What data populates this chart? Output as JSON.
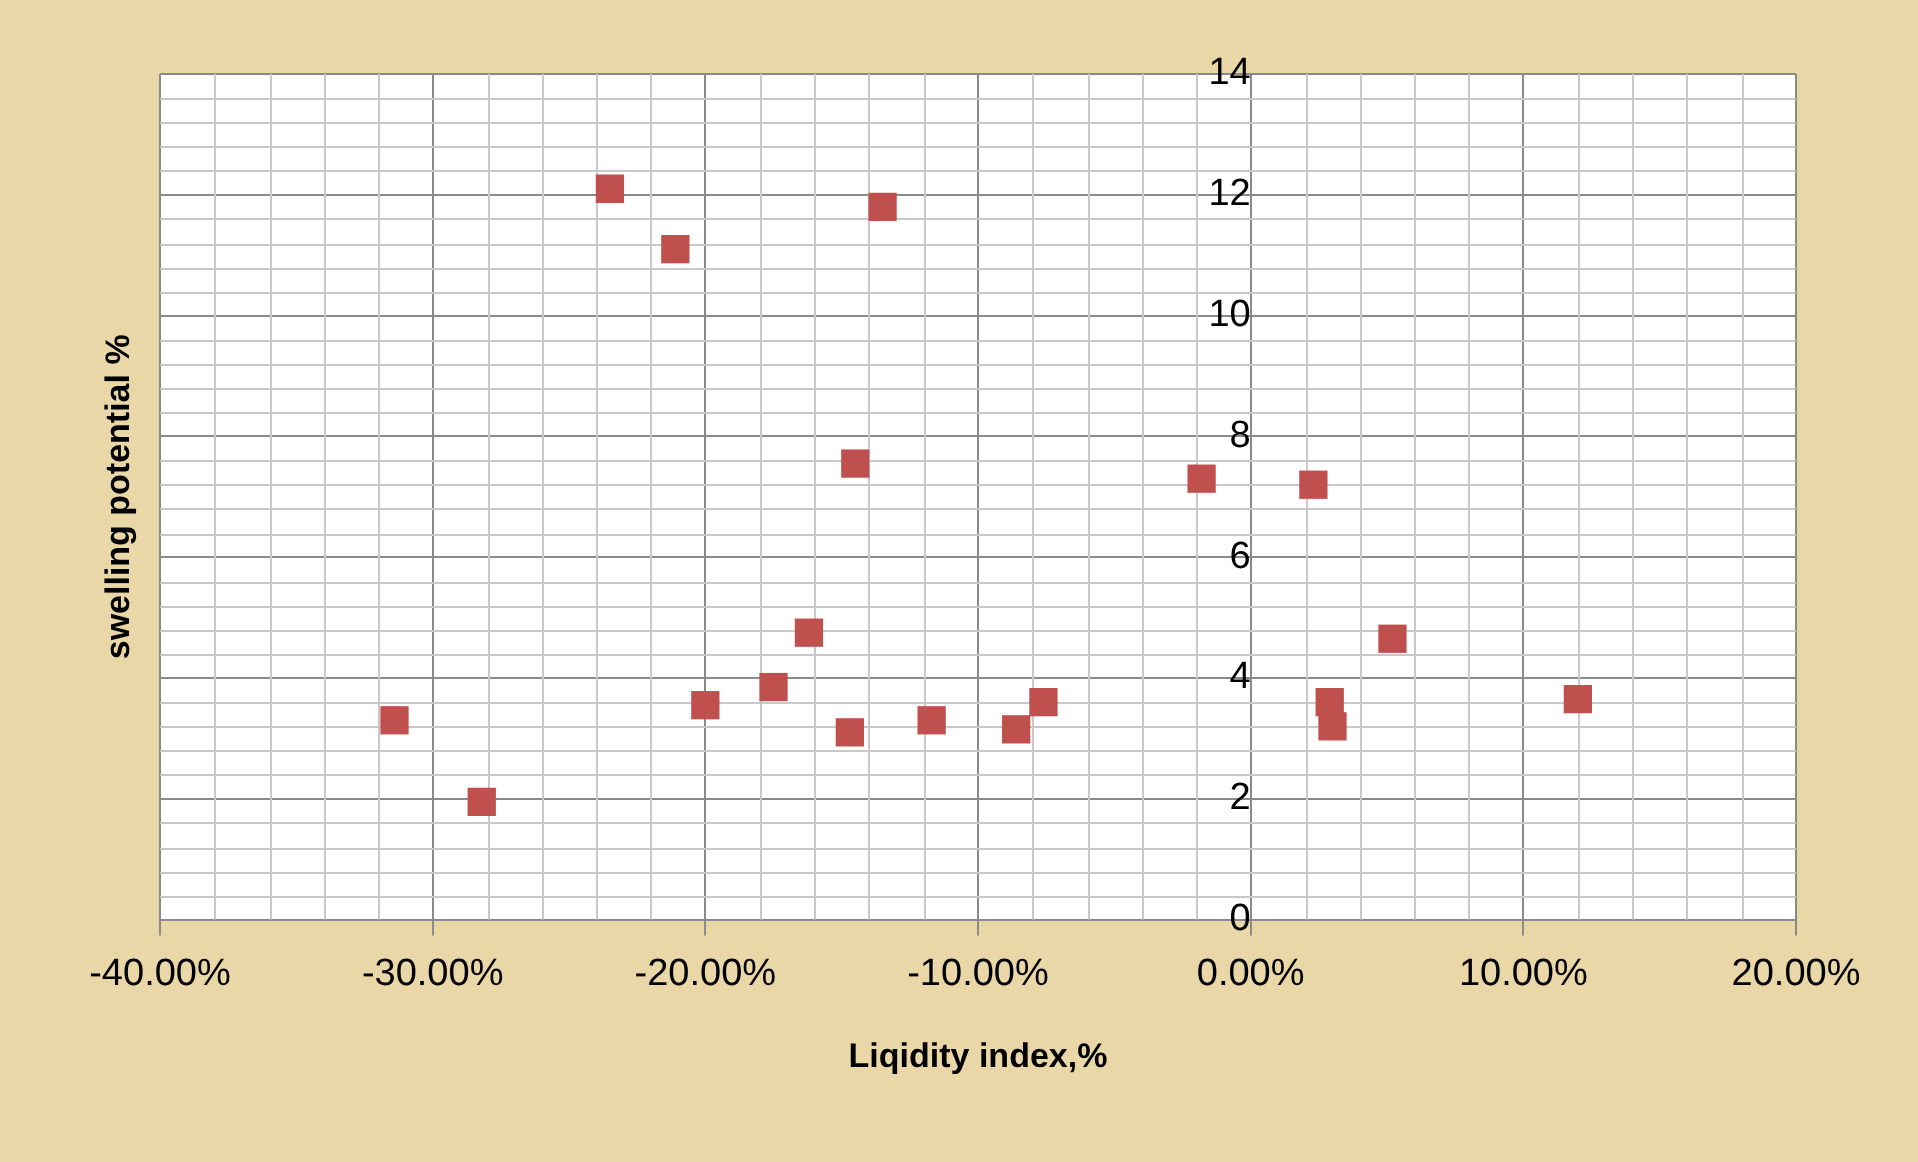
{
  "chart_data": {
    "type": "scatter",
    "xlabel": "Liqidity index,%",
    "ylabel": "swelling potential %",
    "x": [
      -31.4,
      -28.2,
      -23.5,
      -21.1,
      -20.0,
      -17.5,
      -16.2,
      -14.5,
      -14.7,
      -13.5,
      -11.7,
      -8.6,
      -7.6,
      -1.8,
      2.3,
      2.9,
      3.0,
      5.2,
      12.0
    ],
    "series": [
      {
        "color": "#c0504d",
        "values": [
          3.3,
          1.95,
          12.1,
          11.1,
          3.55,
          3.85,
          4.75,
          7.55,
          3.1,
          11.8,
          3.3,
          3.15,
          3.6,
          7.3,
          7.2,
          3.6,
          3.2,
          4.65,
          3.65
        ]
      }
    ],
    "xlim": [
      -40,
      20
    ],
    "xticks": [
      {
        "value": -40,
        "label": "-40.00%"
      },
      {
        "value": -30,
        "label": "-30.00%"
      },
      {
        "value": -20,
        "label": "-20.00%"
      },
      {
        "value": -10,
        "label": "-10.00%"
      },
      {
        "value": 0,
        "label": "0.00%"
      },
      {
        "value": 10,
        "label": "10.00%"
      },
      {
        "value": 20,
        "label": "20.00%"
      }
    ],
    "ylim": [
      0,
      14
    ],
    "yticks": [
      0,
      2,
      4,
      6,
      8,
      10,
      12,
      14
    ],
    "grid": true,
    "marker": "square",
    "legend": false
  }
}
